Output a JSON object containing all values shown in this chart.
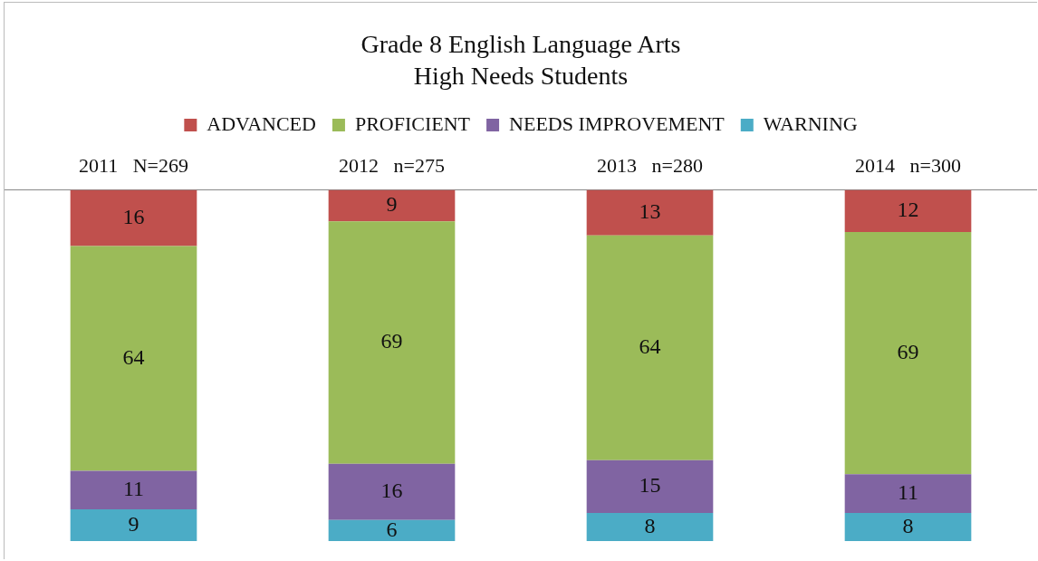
{
  "chart_data": {
    "type": "bar",
    "title": "Grade 8 English Language Arts\nHigh Needs Students",
    "categories": [
      "2011   N=269",
      "2012   n=275",
      "2013   n=280",
      "2014   n=300"
    ],
    "stacked": true,
    "ylim": [
      0,
      100
    ],
    "tick_labels": "x",
    "grid": false,
    "legend": "top",
    "data_labels": true,
    "series": [
      {
        "name": "WARNING",
        "color": "#4bacc6",
        "values": [
          9,
          6,
          8,
          8
        ]
      },
      {
        "name": "NEEDS IMPROVEMENT",
        "color": "#8064a2",
        "values": [
          11,
          16,
          15,
          11
        ]
      },
      {
        "name": "PROFICIENT",
        "color": "#9bbb59",
        "values": [
          64,
          69,
          64,
          69
        ]
      },
      {
        "name": "ADVANCED",
        "color": "#c0504d",
        "values": [
          16,
          9,
          13,
          12
        ]
      }
    ]
  }
}
